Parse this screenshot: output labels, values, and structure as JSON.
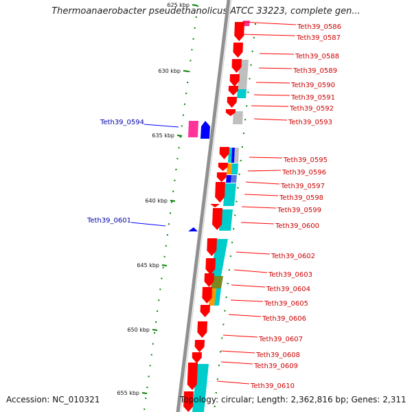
{
  "title": "Thermoanaerobacter pseudethanolicus ATCC 33223, complete gen...",
  "accession_text": "Accession: NC_010321",
  "topology_text": "Topology: circular; Length: 2,362,816 bp; Genes: 2,311",
  "colors": {
    "forward_gene": "#ff0000",
    "reverse_gene": "#0000ff",
    "forward_label": "#cc0000",
    "reverse_label": "#0000aa",
    "axis": "#808080",
    "tick": "#008000",
    "cog_cyan": "#00cccc",
    "cog_gray": "#bfbfbf",
    "cog_pink": "#ff3399",
    "cog_orange": "#ff9900",
    "cog_olive": "#7a8a20",
    "cog_blue": "#0000ff"
  },
  "kbp_labels": [
    "625 kbp",
    "630 kbp",
    "635 kbp",
    "640 kbp",
    "645 kbp",
    "650 kbp",
    "655 kbp"
  ],
  "forward_genes": [
    "Teth39_0586",
    "Teth39_0587",
    "Teth39_0588",
    "Teth39_0589",
    "Teth39_0590",
    "Teth39_0591",
    "Teth39_0592",
    "Teth39_0593",
    "Teth39_0595",
    "Teth39_0596",
    "Teth39_0597",
    "Teth39_0598",
    "Teth39_0599",
    "Teth39_0600",
    "Teth39_0602",
    "Teth39_0603",
    "Teth39_0604",
    "Teth39_0605",
    "Teth39_0606",
    "Teth39_0607",
    "Teth39_0608",
    "Teth39_0609",
    "Teth39_0610"
  ],
  "reverse_genes": [
    "Teth39_0594",
    "Teth39_0601"
  ]
}
